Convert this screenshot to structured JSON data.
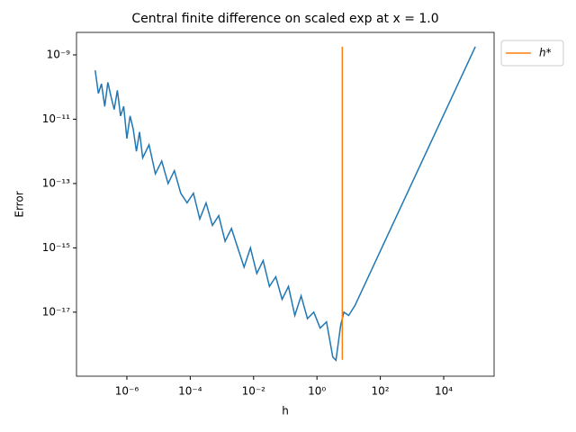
{
  "chart_data": {
    "type": "line",
    "title": "Central finite difference on scaled exp at x = 1.0",
    "x_label": "h",
    "y_label": "Error",
    "log_x": true,
    "log_y": true,
    "grid": false,
    "legend": "outside upper right",
    "xlim": [
      2.57e-08,
      390000.0
    ],
    "ylim": [
      1.02e-19,
      5e-09
    ],
    "xticks": [
      {
        "value": 1e-06,
        "label": "10⁻⁶"
      },
      {
        "value": 0.0001,
        "label": "10⁻⁴"
      },
      {
        "value": 0.01,
        "label": "10⁻²"
      },
      {
        "value": 1,
        "label": "10⁰"
      },
      {
        "value": 100,
        "label": "10²"
      },
      {
        "value": 10000,
        "label": "10⁴"
      }
    ],
    "yticks": [
      {
        "value": 1e-09,
        "label": "10⁻⁹"
      },
      {
        "value": 1e-11,
        "label": "10⁻¹¹"
      },
      {
        "value": 1e-13,
        "label": "10⁻¹³"
      },
      {
        "value": 1e-15,
        "label": "10⁻¹⁵"
      },
      {
        "value": 1e-17,
        "label": "10⁻¹⁷"
      }
    ],
    "series": [
      {
        "color": "#1f77b4",
        "x": [
          1e-07,
          1.26e-07,
          1.58e-07,
          2e-07,
          2.51e-07,
          3.16e-07,
          3.98e-07,
          5.01e-07,
          6.31e-07,
          7.94e-07,
          1e-06,
          1.26e-06,
          1.58e-06,
          2e-06,
          2.51e-06,
          3.16e-06,
          5.01e-06,
          7.94e-06,
          1.26e-05,
          2e-05,
          3.16e-05,
          5.01e-05,
          7.94e-05,
          0.000126,
          0.0002,
          0.000316,
          0.000501,
          0.000794,
          0.00126,
          0.002,
          0.00316,
          0.00501,
          0.00794,
          0.0126,
          0.02,
          0.0316,
          0.0501,
          0.0794,
          0.126,
          0.2,
          0.316,
          0.501,
          0.794,
          1.26,
          2,
          3.16,
          3.98,
          5.62,
          7.08,
          10,
          15.8,
          100000
        ],
        "values": [
          3.3e-10,
          6.3e-11,
          1.26e-10,
          2.5e-11,
          1.4e-10,
          5e-11,
          2e-11,
          7.9e-11,
          1.26e-11,
          2.5e-11,
          2.5e-12,
          1.26e-11,
          5e-12,
          1e-12,
          4e-12,
          6.3e-13,
          1.6e-12,
          2e-13,
          5e-13,
          1e-13,
          2.5e-13,
          5e-14,
          2.5e-14,
          5e-14,
          7.9e-15,
          2.5e-14,
          5e-15,
          1e-14,
          1.6e-15,
          4e-15,
          1e-15,
          2.5e-16,
          1e-15,
          1.6e-16,
          4e-16,
          6.3e-17,
          1.26e-16,
          2.5e-17,
          6.3e-17,
          7.9e-18,
          3.2e-17,
          6.3e-18,
          1e-17,
          3.2e-18,
          5e-18,
          4e-19,
          3.2e-19,
          4e-18,
          1e-17,
          7.9e-18,
          1.6e-17,
          1.8e-09
        ]
      },
      {
        "name": "h*",
        "color": "#ff7f0e",
        "x": [
          6.3,
          6.3
        ],
        "values": [
          1.8e-09,
          3.3e-19
        ]
      }
    ]
  }
}
